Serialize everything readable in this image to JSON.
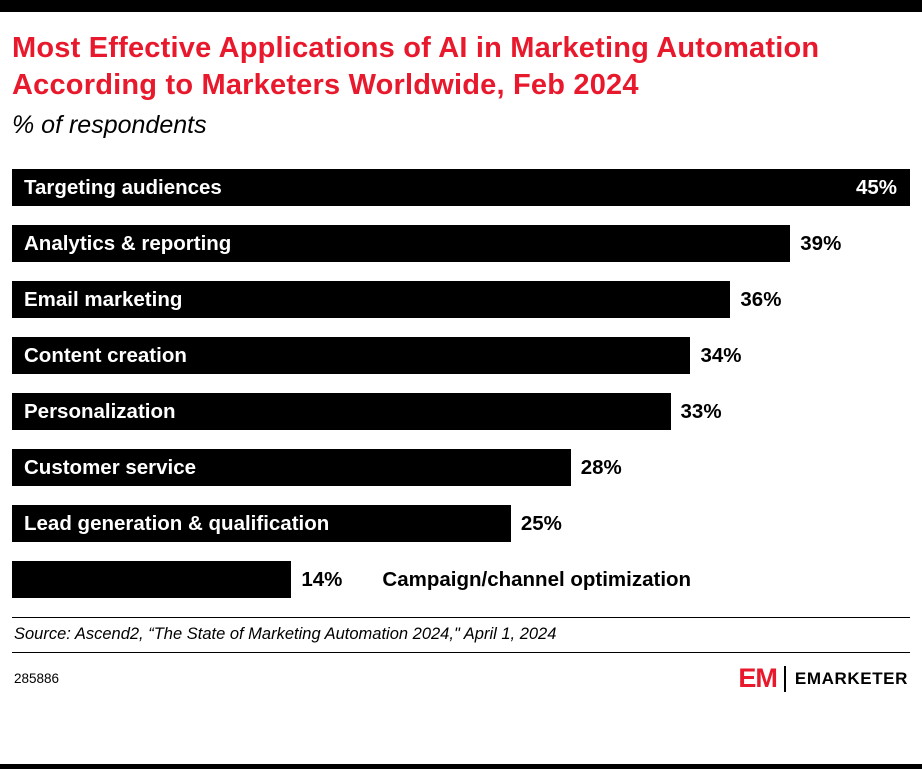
{
  "meta": {
    "title": "Most Effective Applications of AI in Marketing Automation According to Marketers Worldwide, Feb 2024",
    "subtitle": "% of respondents",
    "source": "Source: Ascend2, “The State of Marketing Automation 2024,\" April 1, 2024",
    "chart_id": "285886"
  },
  "brand": {
    "logo_em": "EM",
    "logo_wordmark": "EMARKETER"
  },
  "colors": {
    "accent_red": "#e8192c",
    "bar_black": "#000000",
    "background": "#ffffff"
  },
  "chart_data": {
    "type": "bar",
    "orientation": "horizontal",
    "title": "Most Effective Applications of AI in Marketing Automation According to Marketers Worldwide, Feb 2024",
    "subtitle": "% of respondents",
    "categories": [
      "Targeting audiences",
      "Analytics & reporting",
      "Email marketing",
      "Content creation",
      "Personalization",
      "Customer service",
      "Lead generation & qualification",
      "Campaign/channel optimization"
    ],
    "values": [
      45,
      39,
      36,
      34,
      33,
      28,
      25,
      14
    ],
    "value_suffix": "%",
    "xlim": [
      0,
      45
    ],
    "grid": false,
    "legend": false,
    "bar_color": "#000000",
    "label_color_inside": "#ffffff",
    "label_color_outside": "#000000"
  }
}
